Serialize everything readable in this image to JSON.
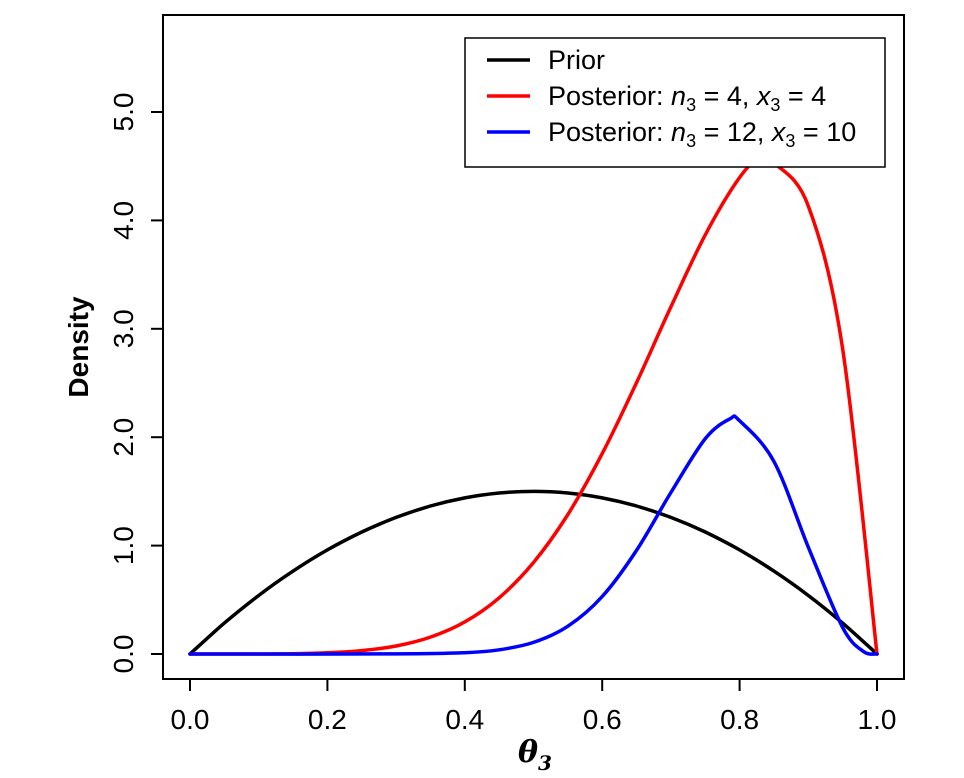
{
  "chart_data": {
    "type": "line",
    "title": "",
    "xlabel": {
      "main": "θ",
      "sub": "3"
    },
    "ylabel": "Density",
    "xlim": [
      0.0,
      1.0
    ],
    "ylim": [
      0.0,
      5.8
    ],
    "x_ticks": [
      0.0,
      0.2,
      0.4,
      0.6,
      0.8,
      1.0
    ],
    "x_tick_labels": [
      "0.0",
      "0.2",
      "0.4",
      "0.6",
      "0.8",
      "1.0"
    ],
    "y_ticks": [
      0.0,
      1.0,
      2.0,
      3.0,
      4.0,
      5.0
    ],
    "y_tick_labels": [
      "0.0",
      "1.0",
      "2.0",
      "3.0",
      "4.0",
      "5.0"
    ],
    "grid": false,
    "legend_position": "top-right",
    "series": [
      {
        "legend": {
          "parts": [
            {
              "t": "Prior"
            }
          ]
        },
        "color": "#000000",
        "x": [
          0.0,
          0.05,
          0.1,
          0.15,
          0.2,
          0.25,
          0.3,
          0.35,
          0.4,
          0.45,
          0.5,
          0.55,
          0.6,
          0.65,
          0.7,
          0.75,
          0.8,
          0.85,
          0.9,
          0.95,
          1.0
        ],
        "y": [
          0.0,
          0.285,
          0.54,
          0.765,
          0.96,
          1.125,
          1.26,
          1.365,
          1.44,
          1.485,
          1.5,
          1.485,
          1.44,
          1.365,
          1.26,
          1.125,
          0.96,
          0.765,
          0.54,
          0.285,
          0.0
        ]
      },
      {
        "legend": {
          "parts": [
            {
              "t": "Posterior: "
            },
            {
              "t": "n",
              "i": true
            },
            {
              "t": "3",
              "sub": true
            },
            {
              "t": " = 4, "
            },
            {
              "t": "x",
              "i": true
            },
            {
              "t": "3",
              "sub": true
            },
            {
              "t": " = 4"
            }
          ]
        },
        "color": "#ff0000",
        "x": [
          0.0,
          0.05,
          0.1,
          0.15,
          0.2,
          0.25,
          0.3,
          0.35,
          0.4,
          0.45,
          0.5,
          0.55,
          0.6,
          0.65,
          0.7,
          0.75,
          0.8,
          0.833,
          0.85,
          0.9,
          0.95,
          1.0
        ],
        "y": [
          0.0,
          0.0,
          0.0004,
          0.003,
          0.011,
          0.031,
          0.074,
          0.156,
          0.296,
          0.518,
          0.844,
          1.287,
          1.849,
          2.503,
          3.202,
          3.867,
          4.396,
          4.597,
          4.533,
          4.133,
          2.817,
          0.0
        ]
      },
      {
        "legend": {
          "parts": [
            {
              "t": "Posterior: "
            },
            {
              "t": "n",
              "i": true
            },
            {
              "t": "3",
              "sub": true
            },
            {
              "t": " = 12, "
            },
            {
              "t": "x",
              "i": true
            },
            {
              "t": "3",
              "sub": true
            },
            {
              "t": " = 10"
            }
          ]
        },
        "color": "#0000ff",
        "x": [
          0.0,
          0.3,
          0.4,
          0.45,
          0.5,
          0.55,
          0.6,
          0.65,
          0.7,
          0.75,
          0.786,
          0.8,
          0.85,
          0.9,
          0.95,
          0.98,
          1.0
        ],
        "y": [
          0.0,
          0.0006,
          0.012,
          0.039,
          0.107,
          0.256,
          0.53,
          0.956,
          1.49,
          1.987,
          2.17,
          2.151,
          1.777,
          0.985,
          0.245,
          0.024,
          0.0
        ]
      }
    ]
  }
}
